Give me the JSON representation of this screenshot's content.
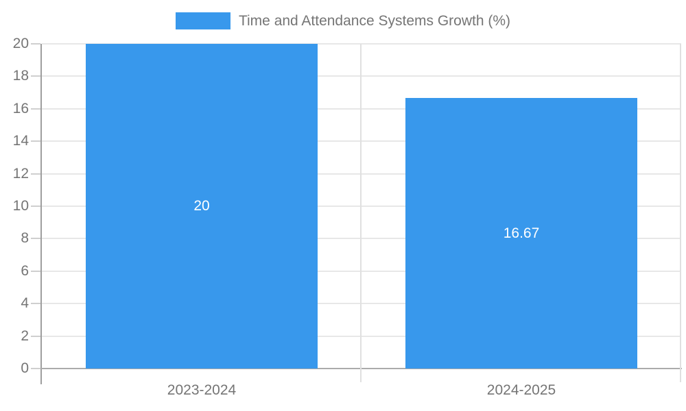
{
  "legend": {
    "label": "Time and Attendance Systems Growth (%)",
    "swatch_color": "#3898ec"
  },
  "chart_data": {
    "type": "bar",
    "title": "Time and Attendance Systems Growth (%)",
    "categories": [
      "2023-2024",
      "2024-2025"
    ],
    "series": [
      {
        "name": "Time and Attendance Systems Growth (%)",
        "color": "#3898ec",
        "values": [
          20,
          16.67
        ]
      }
    ],
    "value_labels": [
      "20",
      "16.67"
    ],
    "xlabel": "",
    "ylabel": "",
    "ylim": [
      0,
      20
    ],
    "yticks": [
      0,
      2,
      4,
      6,
      8,
      10,
      12,
      14,
      16,
      18,
      20
    ],
    "grid": true,
    "legend_position": "top"
  },
  "colors": {
    "bar": "#3898ec",
    "bar_label": "#ffffff",
    "text": "#757575",
    "gridline": "#e7e7e7",
    "separator": "#e0e0e0",
    "axis_line": "#9e9e9e",
    "baseline": "#ababab",
    "background": "#ffffff"
  }
}
